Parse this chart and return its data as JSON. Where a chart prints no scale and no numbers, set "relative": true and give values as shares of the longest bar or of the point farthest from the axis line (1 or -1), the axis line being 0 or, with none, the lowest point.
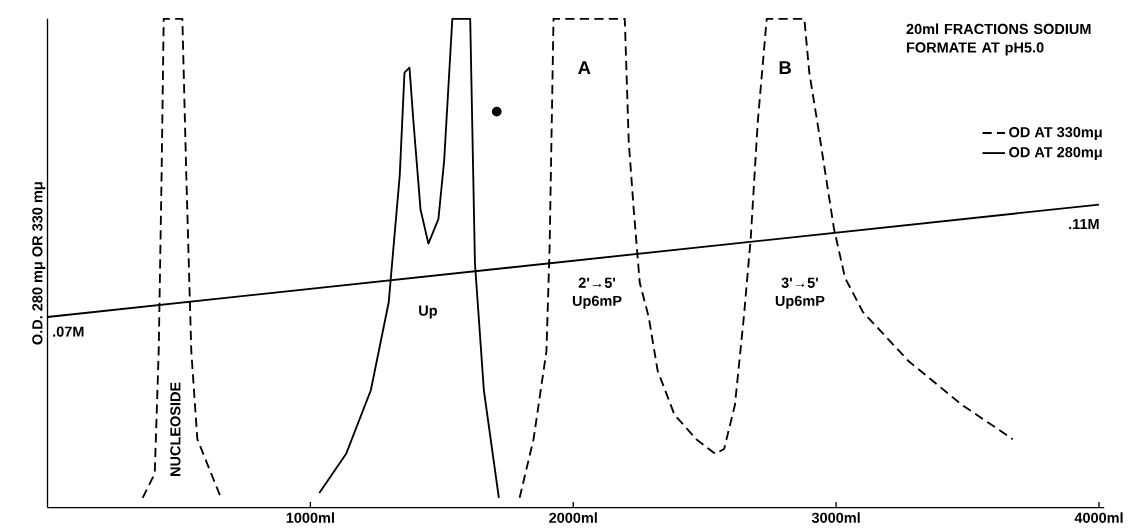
{
  "chart_data": {
    "type": "line",
    "relative": true,
    "ylabel": "O.D. 280 mμ OR 330 mμ",
    "legend_title": "20ml FRACTIONS SODIUM FORMATE AT pH5.0",
    "legend": "top right",
    "xlim": [
      0,
      4020
    ],
    "xticks": [
      {
        "value": 1000,
        "label": "1000ml"
      },
      {
        "value": 2000,
        "label": "2000ml"
      },
      {
        "value": 3000,
        "label": "3000ml"
      },
      {
        "value": 4000,
        "label": "4000ml"
      }
    ],
    "series": [
      {
        "name": "OD AT 330mμ",
        "color": "#000000",
        "line_style": "dashed",
        "x": [
          362,
          408,
          423,
          434,
          442,
          513,
          528,
          547,
          570,
          660,
          1200,
          1796,
          1849,
          1898,
          1910,
          1925,
          2196,
          2211,
          2230,
          2253,
          2287,
          2321,
          2385,
          2468,
          2540,
          2574,
          2615,
          2649,
          2675,
          2702,
          2736,
          2879,
          2898,
          2940,
          2992,
          3034,
          3102,
          3275,
          3479,
          3672
        ],
        "values": [
          0.02,
          0.07,
          0.32,
          0.68,
          1,
          1,
          0.68,
          0.32,
          0.14,
          0.02,
          null,
          0.02,
          0.14,
          0.32,
          0.53,
          1,
          1,
          0.75,
          0.61,
          0.46,
          0.39,
          0.28,
          0.19,
          0.14,
          0.11,
          0.12,
          0.21,
          0.39,
          0.55,
          0.79,
          1,
          1,
          0.89,
          0.75,
          0.57,
          0.47,
          0.4,
          0.3,
          0.21,
          0.14
        ]
      },
      {
        "name": "OD AT 280mμ",
        "color": "#000000",
        "line_style": "solid",
        "x": [
          1034,
          1136,
          1230,
          1298,
          1340,
          1358,
          1377,
          1392,
          1419,
          1449,
          1487,
          1509,
          1540,
          1608,
          1626,
          1660,
          1717
        ],
        "values": [
          0.03,
          0.11,
          0.24,
          0.42,
          0.68,
          0.89,
          0.9,
          0.79,
          0.61,
          0.54,
          0.59,
          0.71,
          1,
          1,
          0.5,
          0.24,
          0.02
        ]
      },
      {
        "color": "#000000",
        "line_style": "solid",
        "x": [
          0,
          4000
        ],
        "values": [
          0.39,
          0.62
        ]
      },
      {
        "type": "scatter",
        "marker": "circle",
        "color": "#000000",
        "x": [
          1709
        ],
        "values": [
          0.81
        ]
      }
    ],
    "annotations": [
      "NUCLEOSIDE",
      "Up",
      "A",
      "B",
      "2'→5'",
      "Up6mP",
      "3'→5'",
      "Up6mP",
      ".07M",
      ".11M"
    ]
  }
}
